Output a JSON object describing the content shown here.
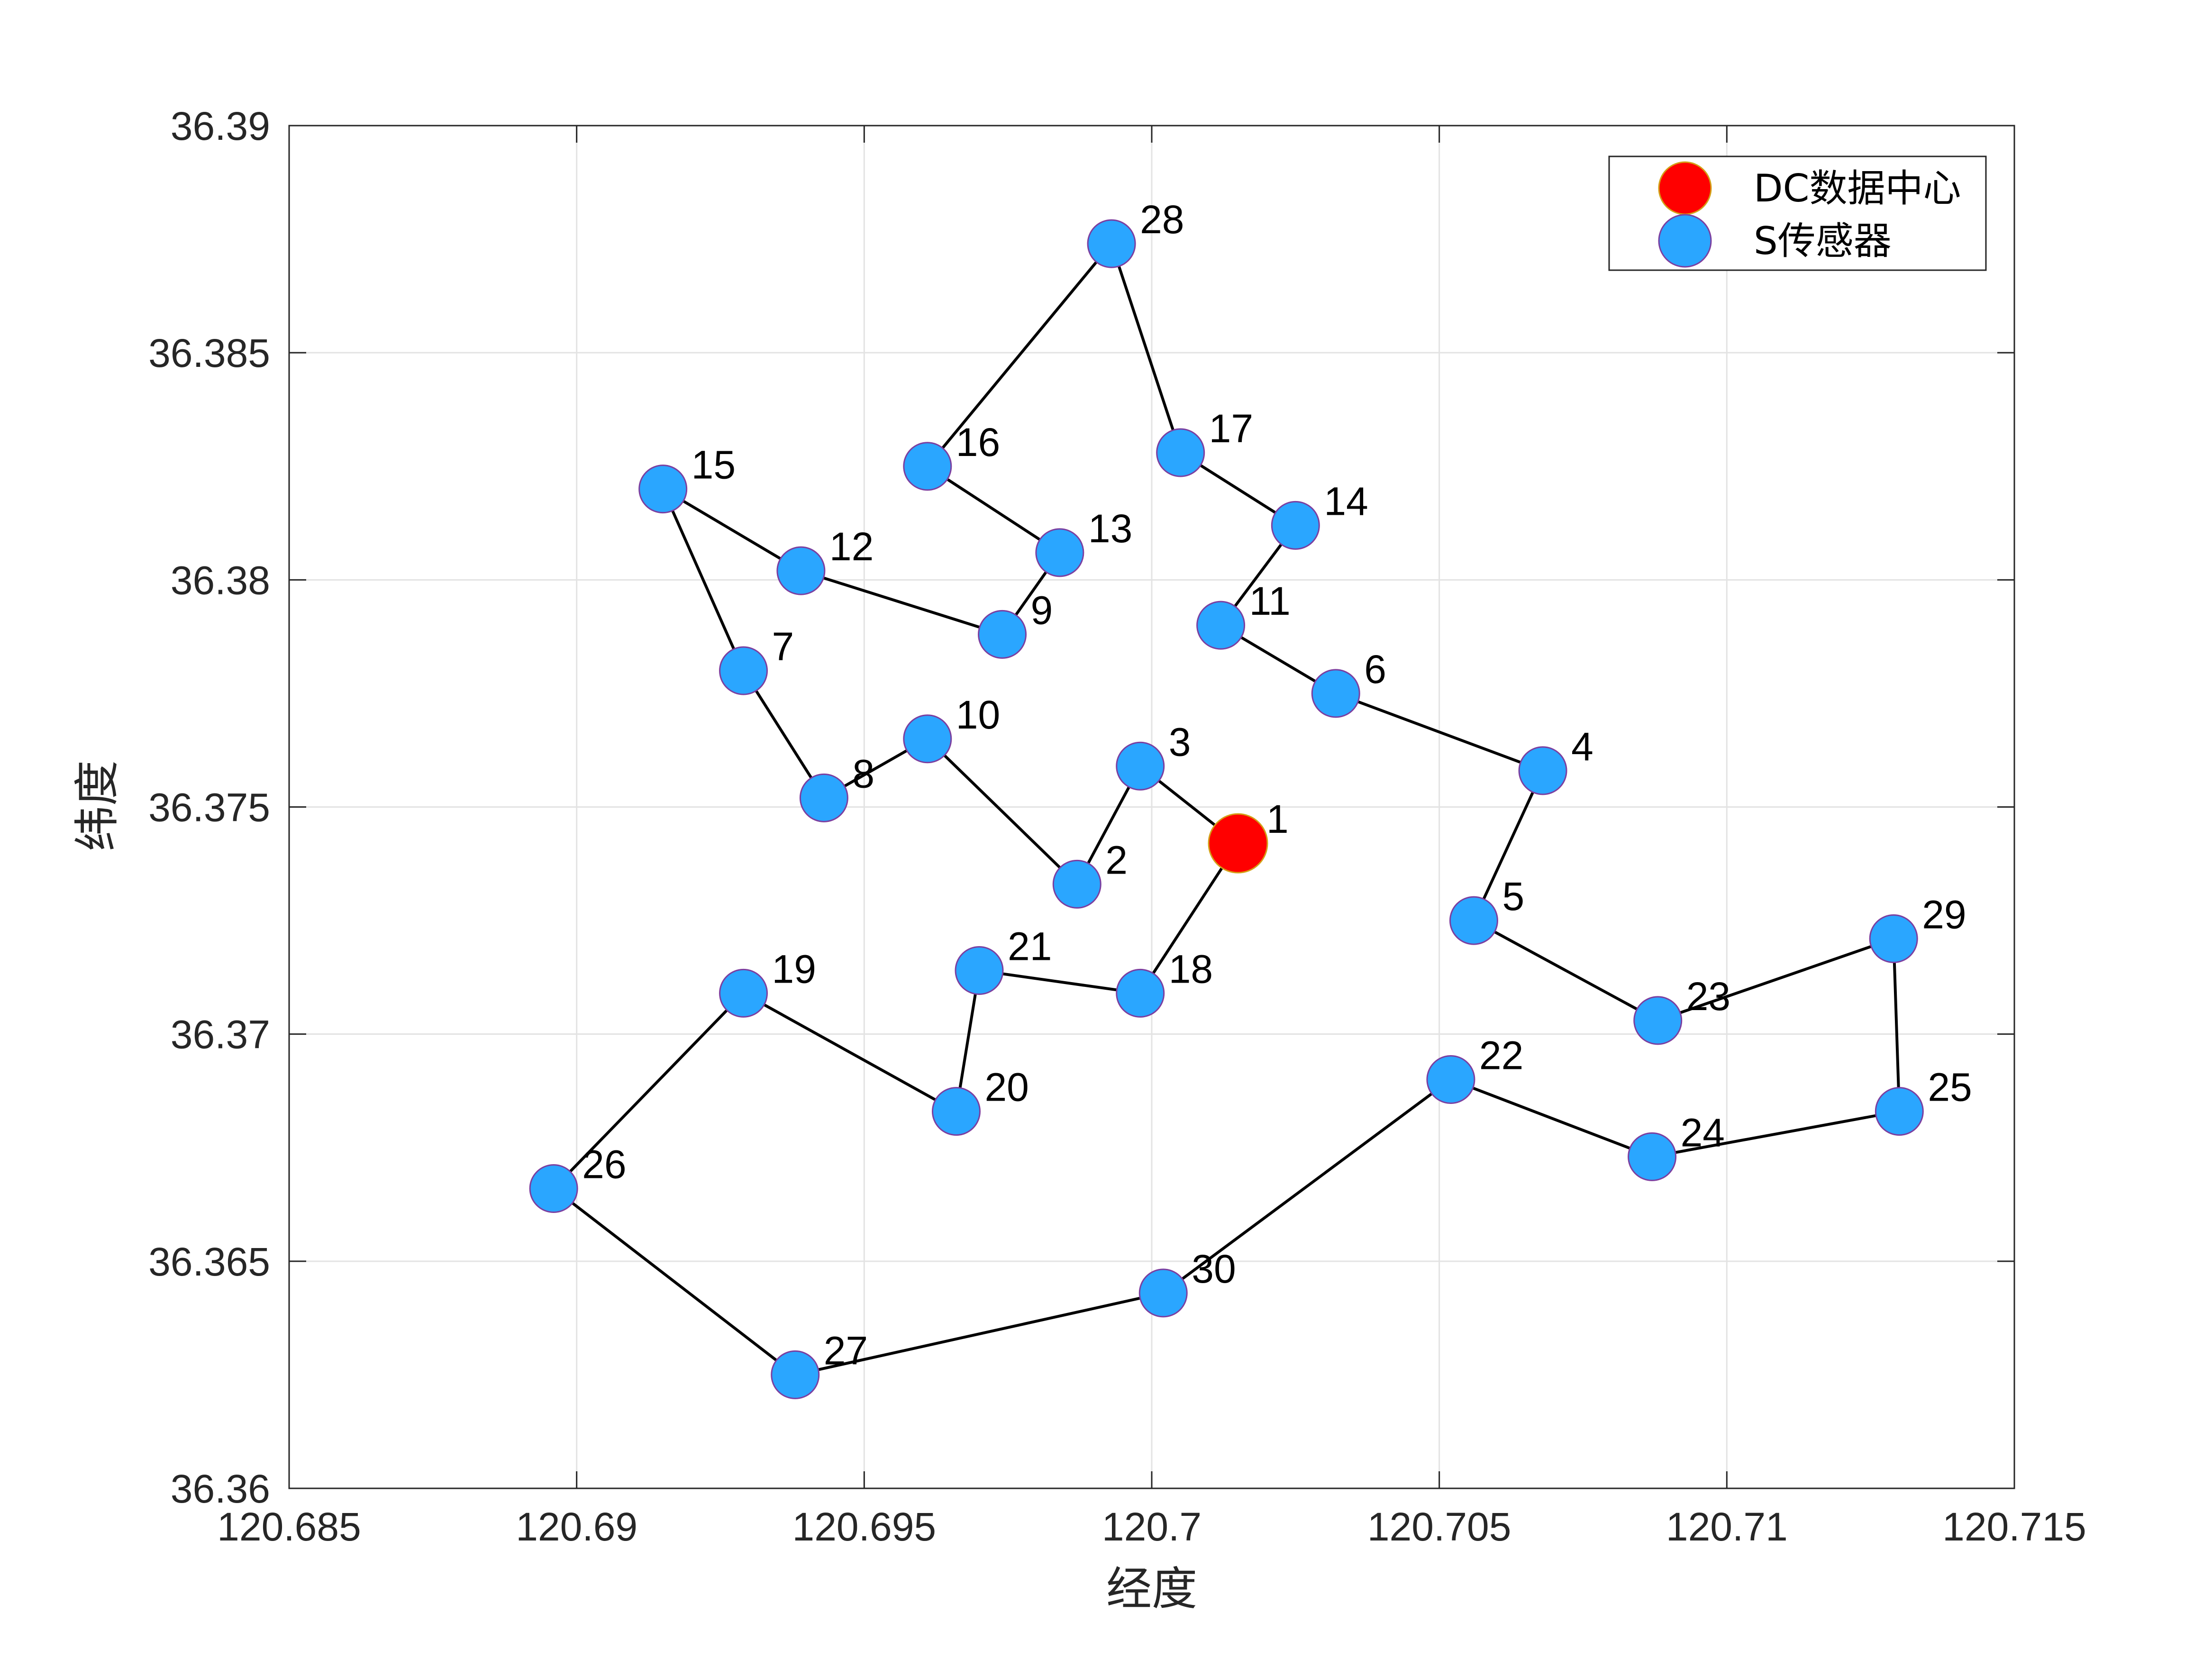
{
  "chart_data": {
    "type": "scatter",
    "xlabel": "经度",
    "ylabel": "纬度",
    "xlim": [
      120.685,
      120.715
    ],
    "ylim": [
      36.36,
      36.39
    ],
    "grid": true,
    "legend_position": "top-right",
    "x_ticks": [
      "120.685",
      "120.69",
      "120.695",
      "120.7",
      "120.705",
      "120.71",
      "120.715"
    ],
    "y_ticks": [
      "36.36",
      "36.365",
      "36.37",
      "36.375",
      "36.38",
      "36.385",
      "36.39"
    ],
    "series": [
      {
        "name": "DC数据中心",
        "color": "#ff0000",
        "edge_color": "#d4a017",
        "indices": [
          1
        ]
      },
      {
        "name": "S传感器",
        "color": "#2aa6ff",
        "edge_color": "#7b3fa0",
        "indices": [
          2,
          3,
          4,
          5,
          6,
          7,
          8,
          9,
          10,
          11,
          12,
          13,
          14,
          15,
          16,
          17,
          18,
          19,
          20,
          21,
          22,
          23,
          24,
          25,
          26,
          27,
          28,
          29,
          30
        ]
      }
    ],
    "points": [
      {
        "id": "1",
        "x": 120.7015,
        "y": 36.3742
      },
      {
        "id": "2",
        "x": 120.6987,
        "y": 36.3733
      },
      {
        "id": "3",
        "x": 120.6998,
        "y": 36.3759
      },
      {
        "id": "4",
        "x": 120.7068,
        "y": 36.3758
      },
      {
        "id": "5",
        "x": 120.7056,
        "y": 36.3725
      },
      {
        "id": "6",
        "x": 120.7032,
        "y": 36.3775
      },
      {
        "id": "7",
        "x": 120.6929,
        "y": 36.378
      },
      {
        "id": "8",
        "x": 120.6943,
        "y": 36.3752
      },
      {
        "id": "9",
        "x": 120.6974,
        "y": 36.3788
      },
      {
        "id": "10",
        "x": 120.6961,
        "y": 36.3765
      },
      {
        "id": "11",
        "x": 120.7012,
        "y": 36.379
      },
      {
        "id": "12",
        "x": 120.6939,
        "y": 36.3802
      },
      {
        "id": "13",
        "x": 120.6984,
        "y": 36.3806
      },
      {
        "id": "14",
        "x": 120.7025,
        "y": 36.3812
      },
      {
        "id": "15",
        "x": 120.6915,
        "y": 36.382
      },
      {
        "id": "16",
        "x": 120.6961,
        "y": 36.3825
      },
      {
        "id": "17",
        "x": 120.7005,
        "y": 36.3828
      },
      {
        "id": "18",
        "x": 120.6998,
        "y": 36.3709
      },
      {
        "id": "19",
        "x": 120.6929,
        "y": 36.3709
      },
      {
        "id": "20",
        "x": 120.6966,
        "y": 36.3683
      },
      {
        "id": "21",
        "x": 120.697,
        "y": 36.3714
      },
      {
        "id": "22",
        "x": 120.7052,
        "y": 36.369
      },
      {
        "id": "23",
        "x": 120.7088,
        "y": 36.3703
      },
      {
        "id": "24",
        "x": 120.7087,
        "y": 36.3673
      },
      {
        "id": "25",
        "x": 120.713,
        "y": 36.3683
      },
      {
        "id": "26",
        "x": 120.6896,
        "y": 36.3666
      },
      {
        "id": "27",
        "x": 120.6938,
        "y": 36.3625
      },
      {
        "id": "28",
        "x": 120.6993,
        "y": 36.3874
      },
      {
        "id": "29",
        "x": 120.7129,
        "y": 36.3721
      },
      {
        "id": "30",
        "x": 120.7002,
        "y": 36.3643
      }
    ],
    "route": [
      "1",
      "3",
      "2",
      "10",
      "8",
      "7",
      "15",
      "12",
      "9",
      "13",
      "16",
      "28",
      "17",
      "14",
      "11",
      "6",
      "4",
      "5",
      "23",
      "29",
      "25",
      "24",
      "22",
      "30",
      "27",
      "26",
      "19",
      "20",
      "21",
      "18",
      "1"
    ]
  }
}
